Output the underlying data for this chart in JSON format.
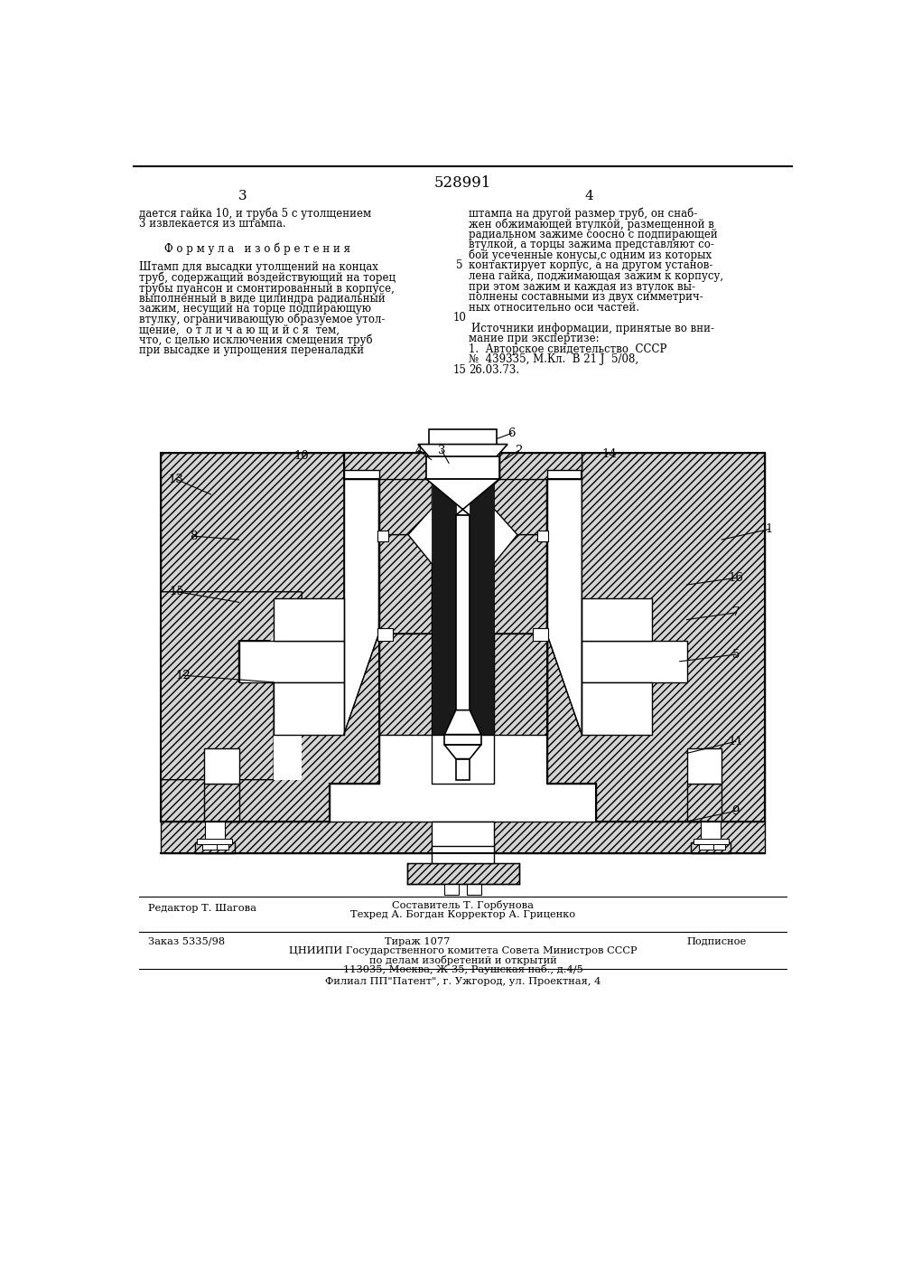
{
  "patent_number": "528991",
  "page_left": "3",
  "page_right": "4",
  "top_text_left": [
    "дается гайка 10, и труба 5 с утолщением",
    "3 извлекается из штампа."
  ],
  "formula_header": "Ф о р м у л а   и з о б р е т е н и я",
  "formula_text": [
    "Штамп для высадки утолщений на концах",
    "труб, содержащий воздействующий на торец",
    "трубы пуансон и смонтированный в корпусе,",
    "выполненный в виде цилиндра радиальный",
    "зажим, несущий на торце подпирающую",
    "втулку, ограничивающую образуемое утол-",
    "щение,  о т л и ч а ю щ и й с я  тем,",
    "что, с целью исключения смещения труб",
    "при высадке и упрощения переналадки"
  ],
  "top_text_right": [
    "штампа на другой размер труб, он снаб-",
    "жен обжимающей втулкой, размещенной в",
    "радиальном зажиме соосно с подпирающей",
    "втулкой, а торцы зажима представляют со-",
    "бой усеченные конусы,с одним из которых",
    "контактирует корпус, а на другом установ-",
    "лена гайка, поджимающая зажим к корпусу,",
    "при этом зажим и каждая из втулок вы-",
    "полнены составными из двух симметрич-",
    "ных относительно оси частей."
  ],
  "line_number_5": "5",
  "line_number_10": "10",
  "line_number_15": "15",
  "sources_header": "    Источники информации, принятые во вни-",
  "sources_text": [
    "мание при экспертизе:",
    "1.  Авторское свидетельство  СССР",
    "№  439335, М.Кл.  В 21 J  5/08,",
    "26.03.73."
  ],
  "bottom_left_line1": "Редактор Т. Шагова",
  "bottom_center_line1": "Составитель Т. Горбунова",
  "bottom_center_line2": "Техред А. Богдан Корректор А. Гриценко",
  "bottom_left_line2": "Заказ 5335/98",
  "bottom_center_line3": "Тираж 1077",
  "bottom_right_line2": "Подписное",
  "bottom_line3": "ЦНИИПИ Государственного комитета Совета Министров СССР",
  "bottom_line4": "по делам изобретений и открытий",
  "bottom_line5": "113035, Москва, Ж-35, Раушская наб., д.4/5",
  "bottom_line6": "Филиал ПП\"Патент\", г. Ужгород, ул. Проектная, 4",
  "bg_color": "#ffffff",
  "text_color": "#000000"
}
